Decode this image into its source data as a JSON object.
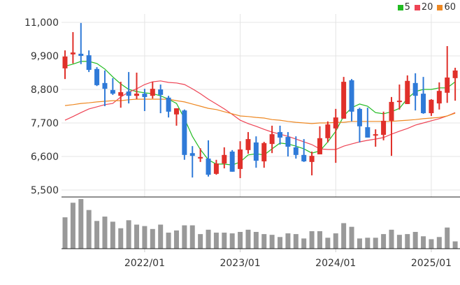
{
  "chart_data": {
    "type": "candlestick",
    "title": "",
    "xlabel": "",
    "ylabel": "",
    "ylim": [
      5500,
      11000
    ],
    "y_ticks": [
      "11,000",
      "9,900",
      "8,800",
      "7,700",
      "6,600",
      "5,500"
    ],
    "y_tick_values": [
      11000,
      9900,
      8800,
      7700,
      6600,
      5500
    ],
    "x_ticks": [
      "2022/01",
      "2023/01",
      "2024/01",
      "2025/01"
    ],
    "grid": true,
    "legend_position": "top-right",
    "up_color": "#e0302a",
    "down_color": "#2f7ad8",
    "volume_color": "#999999",
    "legend": [
      {
        "label": "5",
        "color": "#22bb22"
      },
      {
        "label": "20",
        "color": "#ee4455"
      },
      {
        "label": "60",
        "color": "#ee8822"
      }
    ],
    "months": [
      "2021/03",
      "2021/04",
      "2021/05",
      "2021/06",
      "2021/07",
      "2021/08",
      "2021/09",
      "2021/10",
      "2021/11",
      "2021/12",
      "2022/01",
      "2022/02",
      "2022/03",
      "2022/04",
      "2022/05",
      "2022/06",
      "2022/07",
      "2022/08",
      "2022/09",
      "2022/10",
      "2022/11",
      "2022/12",
      "2023/01",
      "2023/02",
      "2023/03",
      "2023/04",
      "2023/05",
      "2023/06",
      "2023/07",
      "2023/08",
      "2023/09",
      "2023/10",
      "2023/11",
      "2023/12",
      "2024/01",
      "2024/02",
      "2024/03",
      "2024/04",
      "2024/05",
      "2024/06",
      "2024/07",
      "2024/08",
      "2024/09",
      "2024/10",
      "2024/11",
      "2024/12",
      "2025/01",
      "2025/02",
      "2025/03",
      "2025/04"
    ],
    "open": [
      9490,
      9950,
      9970,
      9920,
      9470,
      9010,
      8780,
      8590,
      8730,
      8590,
      8660,
      8590,
      8800,
      8530,
      7980,
      8110,
      6710,
      6550,
      6530,
      6030,
      6370,
      6760,
      6190,
      6810,
      7060,
      6440,
      7010,
      7400,
      7240,
      6900,
      6650,
      6420,
      6670,
      7200,
      7520,
      7840,
      9100,
      8160,
      7560,
      7310,
      7310,
      7770,
      8410,
      8320,
      9010,
      8660,
      8020,
      8340,
      8690,
      9170
    ],
    "high": [
      10080,
      10680,
      10980,
      10080,
      9530,
      9420,
      9170,
      9050,
      9370,
      9350,
      8820,
      9050,
      8960,
      8590,
      8180,
      8140,
      6940,
      6870,
      7130,
      6490,
      6900,
      6810,
      7100,
      7400,
      7260,
      7080,
      7610,
      7610,
      7400,
      7260,
      7170,
      6760,
      7590,
      7750,
      8160,
      9210,
      9140,
      8200,
      8200,
      7490,
      8070,
      8550,
      8960,
      9260,
      9330,
      9210,
      8480,
      9030,
      10220,
      9510
    ],
    "low": [
      9140,
      9650,
      9630,
      9370,
      8910,
      8250,
      8620,
      8200,
      8340,
      8480,
      8090,
      8500,
      8020,
      7880,
      7610,
      6490,
      5910,
      6420,
      5940,
      6000,
      6210,
      6100,
      5890,
      6690,
      6230,
      6230,
      6710,
      6990,
      6600,
      6530,
      6420,
      5980,
      6670,
      7060,
      6390,
      7840,
      7750,
      7060,
      7220,
      6920,
      7130,
      6620,
      8140,
      8320,
      8110,
      8000,
      7930,
      8140,
      8360,
      8430
    ],
    "close": [
      9880,
      10010,
      9900,
      9440,
      8940,
      8820,
      8660,
      8710,
      8590,
      8660,
      8550,
      8820,
      8620,
      8070,
      8180,
      6650,
      6620,
      6580,
      6000,
      6370,
      6650,
      6100,
      6830,
      7170,
      6460,
      7040,
      7330,
      7220,
      6920,
      6650,
      6440,
      6620,
      7200,
      7650,
      7880,
      9050,
      8070,
      7590,
      7220,
      7330,
      7770,
      8390,
      8430,
      9080,
      8590,
      8020,
      8460,
      8750,
      9190,
      9420
    ],
    "volume_relative": [
      43,
      63,
      68,
      53,
      38,
      44,
      37,
      28,
      39,
      33,
      31,
      27,
      33,
      22,
      25,
      32,
      32,
      20,
      26,
      22,
      22,
      21,
      23,
      26,
      23,
      20,
      19,
      16,
      21,
      20,
      14,
      24,
      24,
      15,
      21,
      35,
      30,
      14,
      15,
      15,
      20,
      26,
      19,
      20,
      23,
      17,
      13,
      16,
      29,
      10
    ],
    "series": [
      {
        "name": "5",
        "values": [
          9560,
          9630,
          9720,
          9720,
          9650,
          9470,
          9210,
          8980,
          8800,
          8730,
          8690,
          8660,
          8590,
          8480,
          8340,
          7840,
          7260,
          6830,
          6490,
          6350,
          6350,
          6320,
          6420,
          6650,
          6690,
          6650,
          6850,
          7040,
          7010,
          6940,
          6850,
          6710,
          6780,
          7080,
          7430,
          7930,
          8200,
          8320,
          8250,
          8040,
          8000,
          8070,
          8180,
          8500,
          8730,
          8800,
          8800,
          8850,
          8850,
          9050
        ]
      },
      {
        "name": "20",
        "values": [
          7790,
          7910,
          8040,
          8160,
          8230,
          8300,
          8340,
          8550,
          8710,
          8820,
          8960,
          9050,
          9080,
          9030,
          9010,
          8960,
          8820,
          8660,
          8480,
          8320,
          8160,
          7980,
          7790,
          7680,
          7590,
          7490,
          7400,
          7330,
          7260,
          7170,
          7080,
          6990,
          6850,
          6830,
          6830,
          6940,
          7010,
          7080,
          7130,
          7170,
          7220,
          7330,
          7430,
          7520,
          7630,
          7700,
          7770,
          7840,
          7930,
          8040
        ]
      },
      {
        "name": "60",
        "values": [
          8270,
          8300,
          8340,
          8360,
          8390,
          8410,
          8430,
          8430,
          8460,
          8480,
          8480,
          8480,
          8480,
          8480,
          8430,
          8390,
          8320,
          8250,
          8180,
          8140,
          8070,
          8000,
          7930,
          7910,
          7880,
          7860,
          7810,
          7790,
          7750,
          7720,
          7700,
          7680,
          7700,
          7700,
          7720,
          7720,
          7750,
          7750,
          7750,
          7750,
          7750,
          7750,
          7770,
          7790,
          7810,
          7840,
          7860,
          7880,
          7930,
          8020
        ]
      }
    ]
  }
}
